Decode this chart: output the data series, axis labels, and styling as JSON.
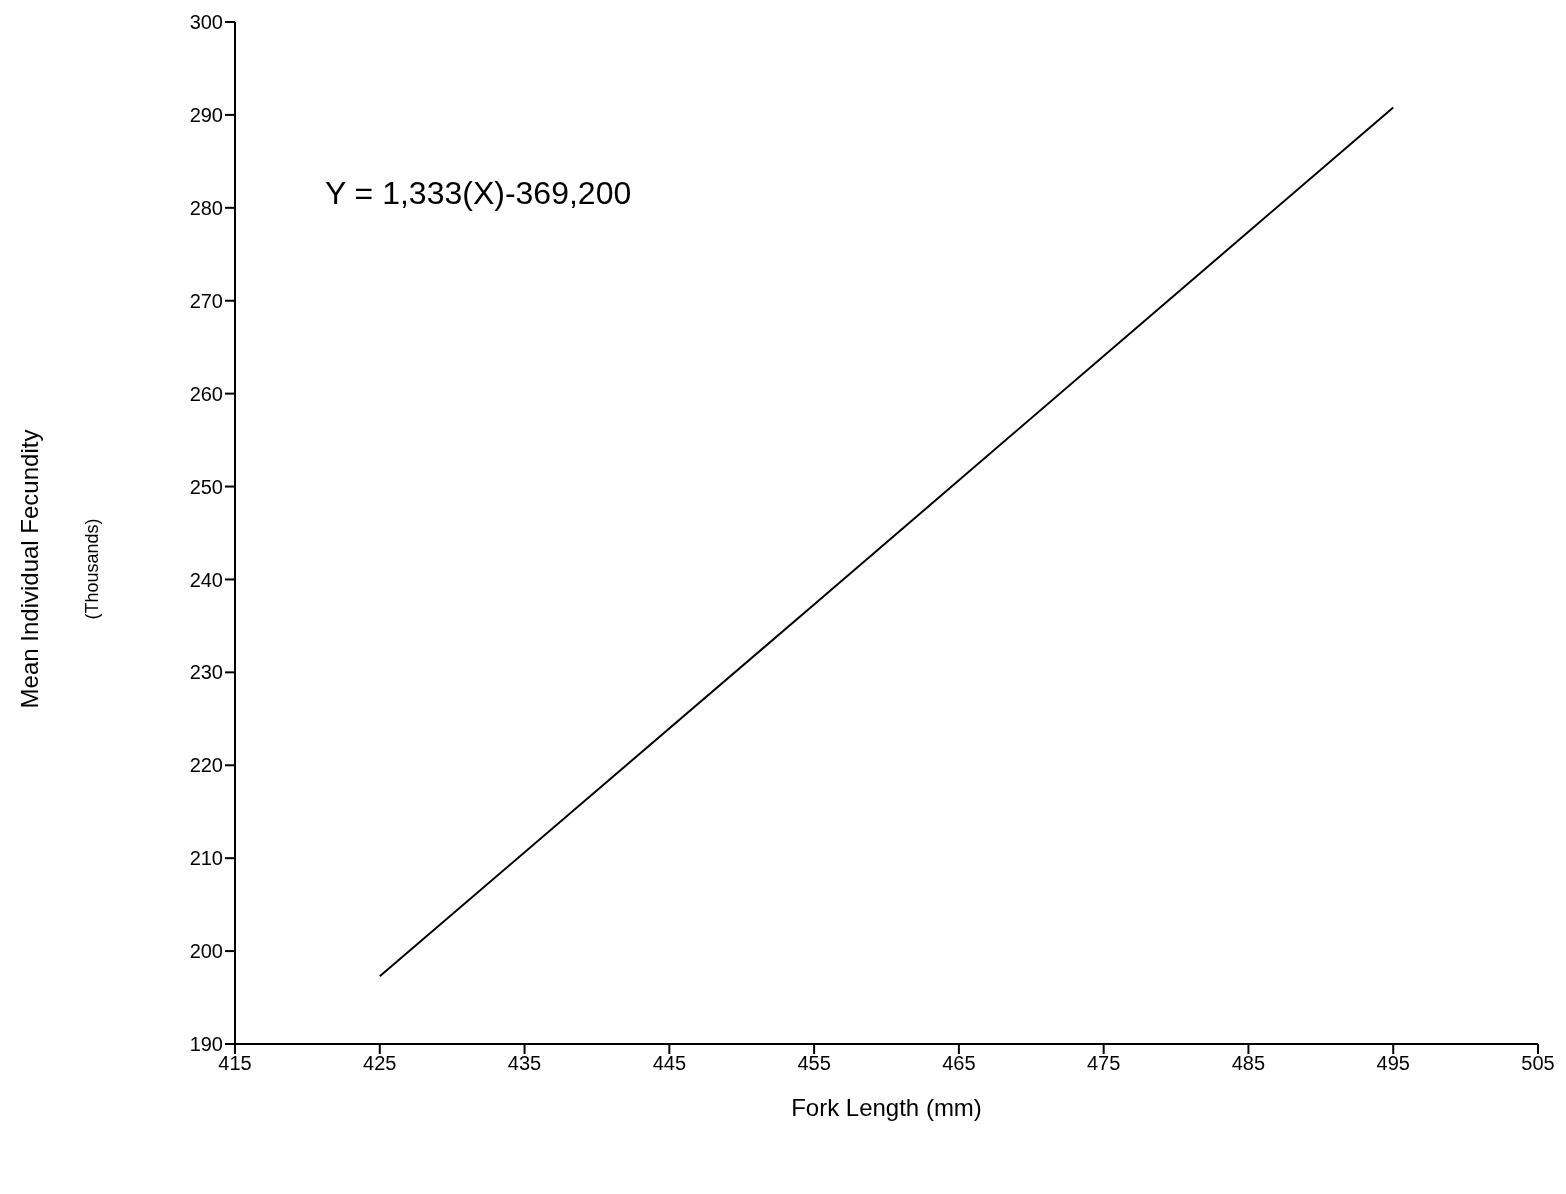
{
  "chart_data": {
    "type": "line",
    "xlabel": "Fork Length (mm)",
    "ylabel": "Mean Individual Fecundity\n(Thousands)",
    "annotations": [
      "Y = 1,333(X)-369,200"
    ],
    "x": [
      425,
      455,
      495
    ],
    "series": [
      {
        "color": "#000000",
        "values": [
          197.3,
          237.3,
          290.8
        ]
      }
    ],
    "xlim": [
      415,
      505
    ],
    "xticks": [
      415,
      425,
      435,
      445,
      455,
      465,
      475,
      485,
      495,
      505
    ],
    "ylim": [
      190,
      300
    ],
    "yticks": [
      190,
      200,
      210,
      220,
      230,
      240,
      250,
      260,
      270,
      280,
      290,
      300
    ],
    "grid": false,
    "legend": false,
    "marker": "none",
    "line_style": "solid"
  }
}
